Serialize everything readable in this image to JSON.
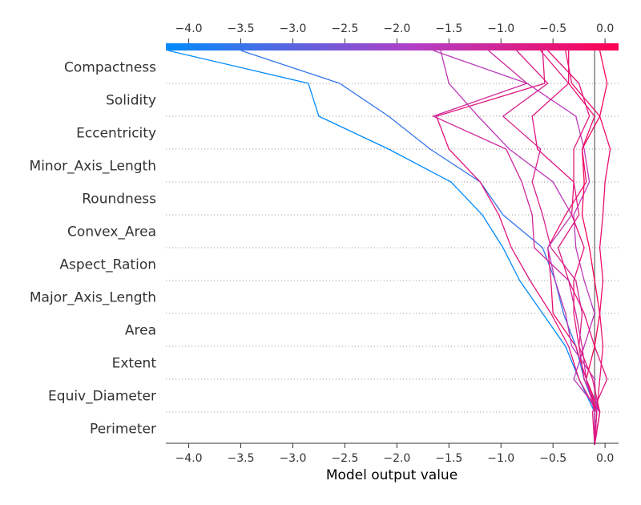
{
  "chart_data": {
    "type": "line",
    "title": "",
    "xlabel": "Model output value",
    "ylabel": "",
    "xlim": [
      -4.22,
      0.13
    ],
    "x_ticks": [
      -4.0,
      -3.5,
      -3.0,
      -2.5,
      -2.0,
      -1.5,
      -1.0,
      -0.5,
      0.0
    ],
    "x_tick_labels": [
      "−4.0",
      "−3.5",
      "−3.0",
      "−2.5",
      "−2.0",
      "−1.5",
      "−1.0",
      "−0.5",
      "0.0"
    ],
    "base_value": -0.1,
    "features": [
      "Compactness",
      "Solidity",
      "Eccentricity",
      "Minor_Axis_Length",
      "Roundness",
      "Convex_Area",
      "Aspect_Ration",
      "Major_Axis_Length",
      "Area",
      "Extent",
      "Equiv_Diameter",
      "Perimeter"
    ],
    "colormap": [
      "#008bfb",
      "#ff0052"
    ],
    "grid": "dotted-horizontal",
    "series": [
      {
        "values": [
          -0.1,
          -0.08,
          -0.2,
          -0.28,
          -0.4,
          -0.48,
          -0.6,
          -0.98,
          -1.2,
          -1.68,
          -2.08,
          -2.55,
          -3.5
        ]
      },
      {
        "values": [
          -0.1,
          -0.1,
          -0.25,
          -0.38,
          -0.6,
          -0.82,
          -0.98,
          -1.18,
          -1.48,
          -2.08,
          -2.75,
          -2.85,
          -4.2
        ]
      },
      {
        "values": [
          -0.1,
          -0.08,
          -0.05,
          -0.02,
          -0.05,
          -0.02,
          -0.05,
          -0.02,
          0.0,
          0.05,
          -0.05,
          -0.32,
          -0.38
        ]
      },
      {
        "values": [
          -0.1,
          -0.05,
          -0.3,
          -0.2,
          -0.1,
          -0.2,
          -0.28,
          -0.3,
          -0.15,
          -0.2,
          -0.28,
          -0.75,
          -1.65
        ]
      },
      {
        "values": [
          -0.1,
          -0.12,
          0.02,
          -0.1,
          -0.2,
          -0.35,
          -0.45,
          -0.25,
          -0.3,
          -0.65,
          -0.7,
          -0.35,
          -0.62
        ]
      },
      {
        "values": [
          -0.1,
          -0.05,
          -0.18,
          -0.28,
          -0.5,
          -0.52,
          -0.55,
          -0.38,
          -0.18,
          -0.22,
          -0.1,
          -0.35,
          -0.35
        ]
      },
      {
        "values": [
          -0.1,
          -0.08,
          -0.18,
          -0.1,
          -0.05,
          -0.1,
          -0.15,
          -0.22,
          -0.2,
          -0.22,
          -0.05,
          0.02,
          -0.05
        ]
      },
      {
        "values": [
          -0.1,
          -0.05,
          -0.2,
          -0.25,
          -0.22,
          -0.28,
          -0.52,
          -0.6,
          -0.7,
          -0.62,
          -0.98,
          -0.55,
          -0.85
        ]
      },
      {
        "values": [
          -0.1,
          -0.08,
          -0.1,
          -0.32,
          -0.38,
          -0.48,
          -0.55,
          -0.32,
          -0.5,
          -0.92,
          -1.22,
          -1.5,
          -1.58
        ]
      },
      {
        "values": [
          -0.1,
          -0.1,
          -0.18,
          -0.22,
          -0.28,
          -0.35,
          -0.68,
          -0.7,
          -0.8,
          -0.95,
          -1.65,
          -0.75,
          -1.12
        ]
      },
      {
        "values": [
          -0.1,
          -0.08,
          -0.25,
          -0.35,
          -0.52,
          -0.72,
          -0.9,
          -1.02,
          -1.2,
          -1.5,
          -1.62,
          -0.58,
          -0.6
        ]
      },
      {
        "values": [
          -0.1,
          -0.05,
          -0.12,
          -0.25,
          -0.3,
          -0.3,
          -0.2,
          -0.32,
          -0.3,
          -0.3,
          -0.15,
          -0.25,
          -0.55
        ]
      }
    ]
  }
}
